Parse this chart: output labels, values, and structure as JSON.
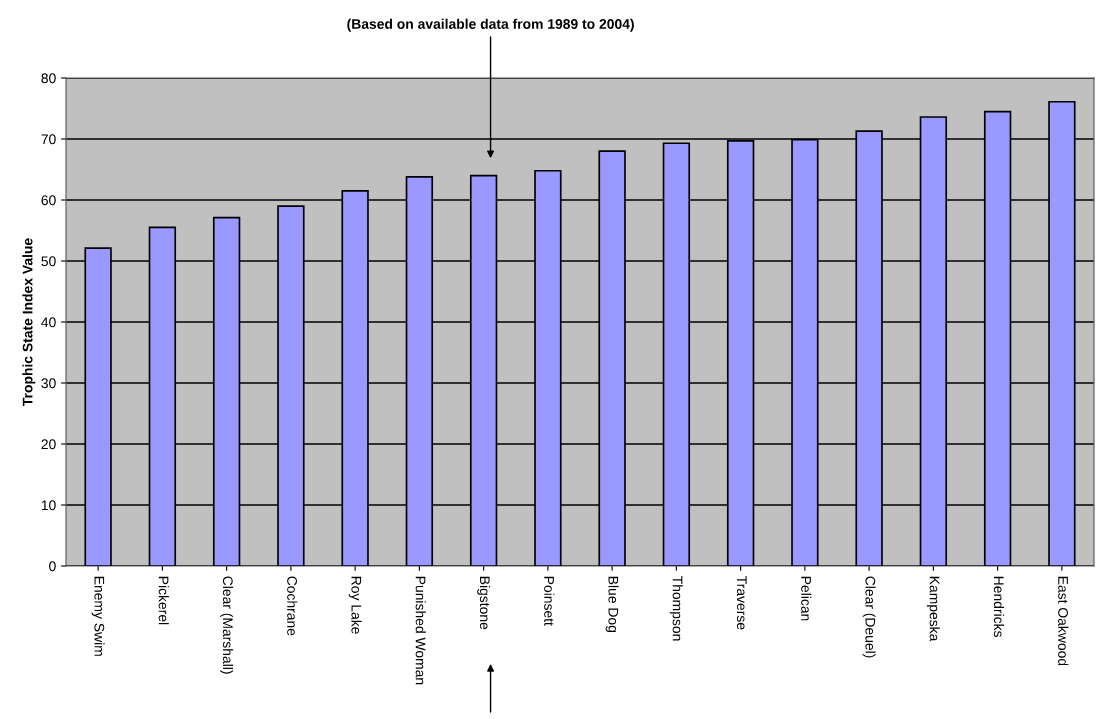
{
  "chart_data": {
    "type": "bar",
    "categories": [
      "Enemy Swim",
      "Pickerel",
      "Clear (Marshall)",
      "Cochrane",
      "Roy Lake",
      "Punished Woman",
      "Bigstone",
      "Poinsett",
      "Blue Dog",
      "Thompson",
      "Traverse",
      "Pelican",
      "Clear (Deuel)",
      "Kampeska",
      "Hendricks",
      "East Oakwood"
    ],
    "values": [
      52.1,
      55.5,
      57.1,
      59.0,
      61.5,
      63.8,
      64.0,
      64.8,
      68.0,
      69.3,
      69.7,
      69.9,
      71.3,
      73.6,
      74.5,
      76.1
    ],
    "color": "#9999ff",
    "ylabel": "Trophic State Index Value",
    "annotations": [
      "(Based on available data from 1989 to 2004)"
    ],
    "ylim": [
      0,
      80
    ],
    "yticks": [
      0,
      10,
      20,
      30,
      40,
      50,
      60,
      70,
      80
    ],
    "grid": "y"
  }
}
